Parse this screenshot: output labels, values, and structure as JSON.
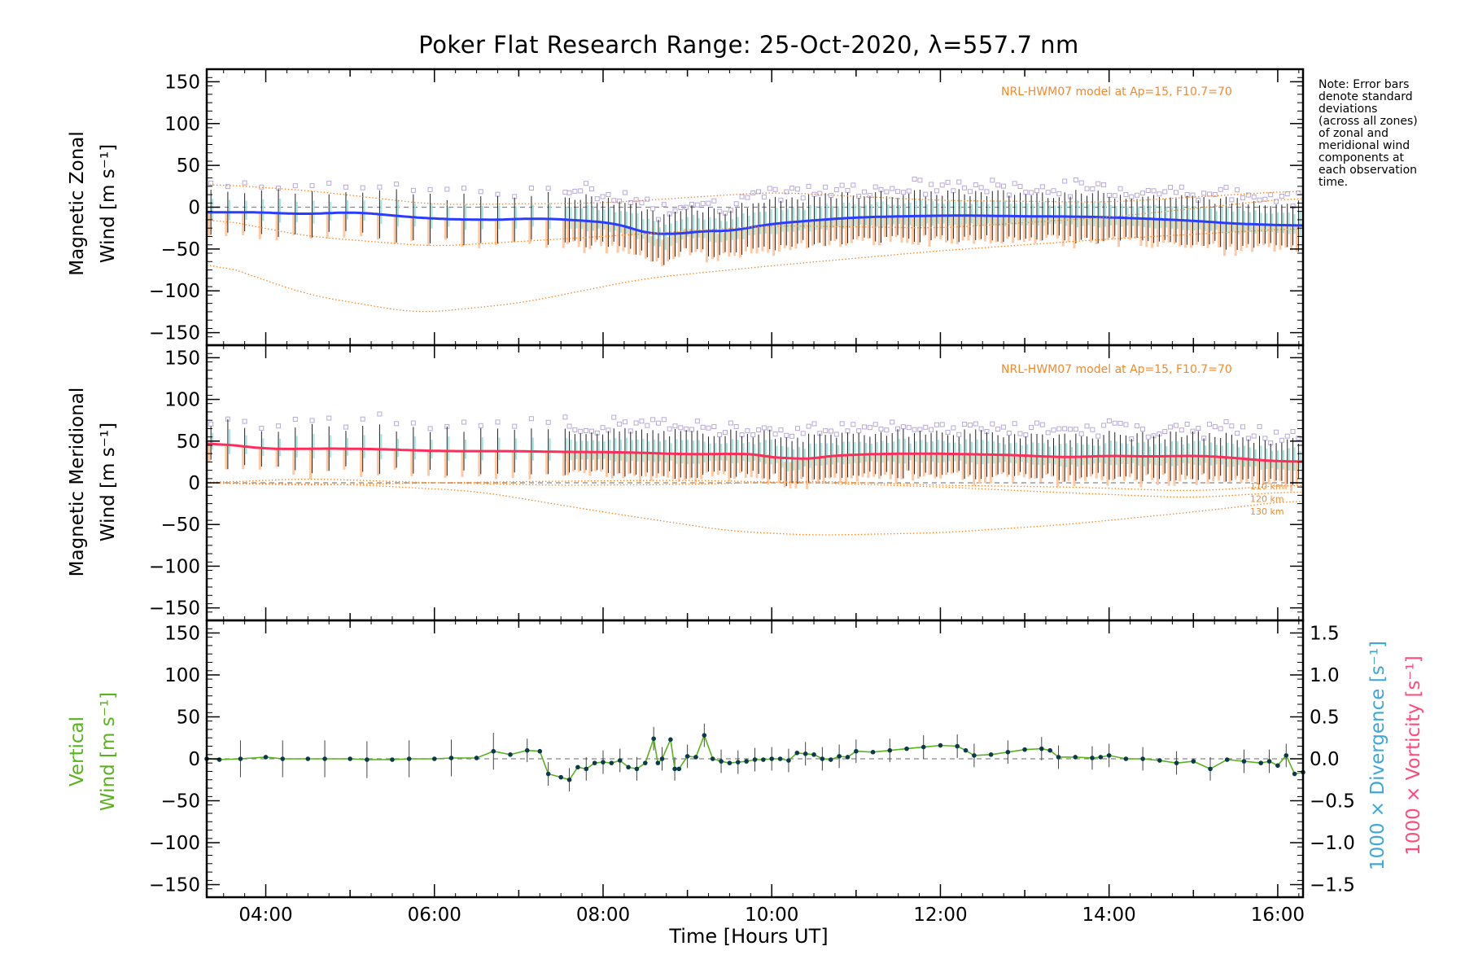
{
  "title": "Poker Flat Research Range: 25-Oct-2020, λ=557.7 nm",
  "note_lines": [
    "Note: Error bars",
    "denote standard",
    "deviations",
    "(across all zones)",
    "of zonal and",
    "meridional wind",
    "components at",
    "each observation",
    "time."
  ],
  "xlabel": "Time [Hours UT]",
  "colors": {
    "zonal_mean": "#2a3cff",
    "meridional_mean": "#ff2d5a",
    "vertical": "#5ab31e",
    "model": "#f08a2e",
    "divergence_label": "#3ea6d8",
    "vorticity_label": "#ff4a7a",
    "spread_lavender": "#b7a9d9",
    "spread_peach": "#ffc8a0",
    "spread_cyan": "#9fe6e0",
    "errorbar": "#222222"
  },
  "chart_data": [
    {
      "type": "line",
      "panel": "top",
      "ylabel_line1": "Magnetic Zonal",
      "ylabel_line2": "Wind [m s⁻¹]",
      "model_note": "NRL-HWM07 model at Ap=15, F10.7=70",
      "xlim": [
        3.3,
        16.3
      ],
      "ylim": [
        -165,
        165
      ],
      "yticks": [
        150,
        100,
        50,
        0,
        -50,
        -100,
        -150
      ],
      "x_tick_labels": [
        "04:00",
        "06:00",
        "08:00",
        "10:00",
        "12:00",
        "14:00",
        "16:00"
      ],
      "mean_series": {
        "x": [
          3.3,
          3.5,
          4.0,
          4.5,
          5.0,
          5.5,
          6.0,
          6.5,
          7.0,
          7.2,
          7.5,
          8.0,
          8.3,
          8.5,
          8.7,
          9.0,
          9.4,
          9.8,
          10.2,
          10.6,
          11.0,
          11.5,
          12.0,
          12.5,
          13.0,
          13.5,
          14.0,
          14.5,
          15.0,
          15.5,
          16.0,
          16.3
        ],
        "y": [
          -6,
          -6,
          -6,
          -9,
          -5,
          -10,
          -14,
          -15,
          -15,
          -12,
          -15,
          -17,
          -22,
          -30,
          -40,
          -25,
          -32,
          -22,
          -18,
          -15,
          -12,
          -11,
          -10,
          -10,
          -11,
          -11,
          -12,
          -14,
          -16,
          -20,
          -21,
          -23
        ]
      },
      "model_curves": [
        {
          "x": [
            3.3,
            4.5,
            6.0,
            8.0,
            10.0,
            12.0,
            14.0,
            16.3
          ],
          "y": [
            28,
            20,
            3,
            5,
            18,
            8,
            6,
            20
          ]
        },
        {
          "x": [
            3.3,
            4.5,
            6.0,
            8.0,
            10.0,
            12.0,
            14.0,
            16.3
          ],
          "y": [
            -12,
            -35,
            -47,
            -35,
            -22,
            -25,
            -12,
            12
          ]
        },
        {
          "x": [
            3.3,
            4.5,
            5.8,
            7.0,
            8.5,
            10.0,
            12.0,
            14.0,
            16.3
          ],
          "y": [
            -63,
            -105,
            -127,
            -115,
            -85,
            -70,
            -52,
            -38,
            -25
          ]
        }
      ]
    },
    {
      "type": "line",
      "panel": "middle",
      "ylabel_line1": "Magnetic Meridional",
      "ylabel_line2": "Wind [m s⁻¹]",
      "model_note": "NRL-HWM07 model at Ap=15, F10.7=70",
      "xlim": [
        3.3,
        16.3
      ],
      "ylim": [
        -165,
        165
      ],
      "yticks": [
        150,
        100,
        50,
        0,
        -50,
        -100,
        -150
      ],
      "model_labels": [
        "110 km",
        "120 km",
        "130 km"
      ],
      "mean_series": {
        "x": [
          3.3,
          3.5,
          4.0,
          4.5,
          5.0,
          5.5,
          6.0,
          6.5,
          7.0,
          7.5,
          8.0,
          8.5,
          9.0,
          9.5,
          10.0,
          10.2,
          10.5,
          11.0,
          11.5,
          12.0,
          12.5,
          13.0,
          13.5,
          14.0,
          14.5,
          15.0,
          15.5,
          16.0,
          16.3
        ],
        "y": [
          48,
          47,
          40,
          41,
          41,
          40,
          38,
          38,
          38,
          37,
          37,
          36,
          34,
          35,
          34,
          24,
          31,
          34,
          35,
          35,
          34,
          33,
          30,
          33,
          31,
          33,
          30,
          25,
          26
        ]
      },
      "model_curves": [
        {
          "x": [
            3.3,
            4.5,
            6.0,
            7.5,
            9.0,
            10.5,
            12.0,
            13.5,
            15.0,
            16.3
          ],
          "y": [
            0,
            5,
            0,
            -3,
            -2,
            2,
            -3,
            -5,
            -10,
            -2
          ]
        },
        {
          "x": [
            3.3,
            4.5,
            6.0,
            7.5,
            9.0,
            10.5,
            12.0,
            13.5,
            15.0,
            16.3
          ],
          "y": [
            0,
            -3,
            0,
            2,
            3,
            0,
            -5,
            -12,
            -18,
            -10
          ]
        },
        {
          "x": [
            3.3,
            5.0,
            6.5,
            8.0,
            9.5,
            10.5,
            12.0,
            13.5,
            15.0,
            16.3
          ],
          "y": [
            0,
            -2,
            -10,
            -35,
            -58,
            -63,
            -60,
            -50,
            -35,
            -20
          ]
        }
      ]
    },
    {
      "type": "line",
      "panel": "bottom",
      "ylabel_line1": "Vertical",
      "ylabel_line2": "Wind [m s⁻¹]",
      "right_label_1": "1000 × Divergence [s⁻¹]",
      "right_label_2": "1000 × Vorticity [s⁻¹]",
      "xlim": [
        3.3,
        16.3
      ],
      "ylim": [
        -165,
        165
      ],
      "yticks": [
        150,
        100,
        50,
        0,
        -50,
        -100,
        -150
      ],
      "right_ylim": [
        -1.65,
        1.65
      ],
      "right_yticks": [
        1.5,
        1.0,
        0.5,
        0.0,
        -0.5,
        -1.0,
        -1.5
      ],
      "right_ytick_labels": [
        "1.5",
        "1.0",
        "0.5",
        "0.0",
        "−0.5",
        "−1.0",
        "−1.5"
      ],
      "series": [
        {
          "x": [
            3.3,
            3.45,
            3.7,
            4.0,
            4.2,
            4.5,
            4.7,
            5.0,
            5.2,
            5.5,
            5.7,
            6.0,
            6.2,
            6.5,
            6.7,
            6.9,
            7.1,
            7.25,
            7.35,
            7.5,
            7.6,
            7.7,
            7.8,
            7.9,
            8.0,
            8.1,
            8.2,
            8.3,
            8.4,
            8.5,
            8.6,
            8.65,
            8.7,
            8.8,
            8.85,
            8.9,
            9.0,
            9.1,
            9.2,
            9.3,
            9.4,
            9.5,
            9.6,
            9.7,
            9.8,
            9.9,
            10.0,
            10.1,
            10.2,
            10.3,
            10.4,
            10.5,
            10.6,
            10.7,
            10.8,
            10.9,
            11.0,
            11.2,
            11.4,
            11.6,
            11.8,
            12.0,
            12.2,
            12.3,
            12.4,
            12.6,
            12.8,
            13.0,
            13.2,
            13.3,
            13.4,
            13.6,
            13.8,
            13.9,
            14.0,
            14.2,
            14.4,
            14.6,
            14.8,
            15.0,
            15.2,
            15.4,
            15.6,
            15.8,
            15.9,
            16.0,
            16.1,
            16.2,
            16.3
          ],
          "y": [
            0,
            -1,
            0,
            2,
            0,
            0,
            0,
            0,
            -1,
            -1,
            0,
            0,
            1,
            1,
            9,
            5,
            10,
            9,
            -18,
            -22,
            -25,
            -10,
            -12,
            -5,
            -4,
            -5,
            -2,
            -10,
            -12,
            -5,
            24,
            -5,
            0,
            23,
            -12,
            -12,
            3,
            2,
            28,
            0,
            -3,
            -5,
            -4,
            -3,
            -1,
            -1,
            0,
            0,
            -2,
            7,
            6,
            5,
            0,
            -1,
            3,
            2,
            9,
            8,
            10,
            12,
            14,
            16,
            15,
            10,
            4,
            5,
            8,
            11,
            12,
            10,
            2,
            2,
            1,
            2,
            4,
            0,
            0,
            -2,
            -5,
            -3,
            -12,
            -1,
            -3,
            -5,
            -3,
            -8,
            4,
            -18,
            -16
          ]
        }
      ]
    }
  ]
}
